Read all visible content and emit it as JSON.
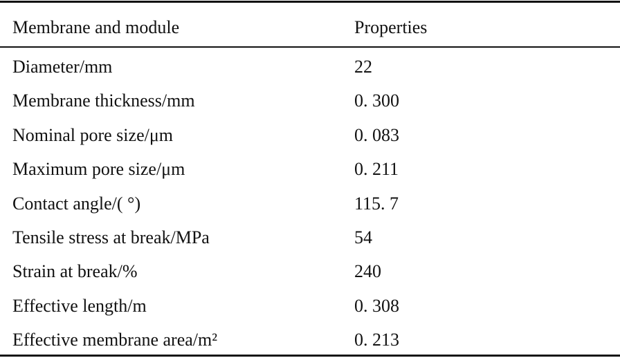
{
  "table": {
    "header": [
      "Membrane and module",
      "Properties"
    ],
    "rows": [
      [
        "Diameter/mm",
        "22"
      ],
      [
        "Membrane thickness/mm",
        "0. 300"
      ],
      [
        "Nominal pore size/μm",
        "0. 083"
      ],
      [
        "Maximum pore size/μm",
        "0. 211"
      ],
      [
        "Contact angle/( °)",
        "115. 7"
      ],
      [
        "Tensile stress at break/MPa",
        "54"
      ],
      [
        "Strain at break/%",
        "240"
      ],
      [
        "Effective length/m",
        "0. 308"
      ],
      [
        "Effective membrane area/m²",
        "0. 213"
      ]
    ]
  }
}
